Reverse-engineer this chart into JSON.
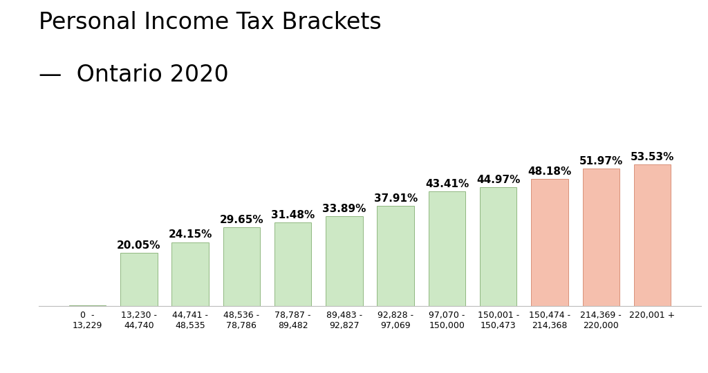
{
  "title_line1": "Personal Income Tax Brackets",
  "title_line2": "—  Ontario 2020",
  "categories": [
    "0  -\n13,229",
    "13,230 -\n44,740",
    "44,741 -\n48,535",
    "48,536 -\n78,786",
    "78,787 -\n89,482",
    "89,483 -\n92,827",
    "92,828 -\n97,069",
    "97,070 -\n150,000",
    "150,001 -\n150,473",
    "150,474 -\n214,368",
    "214,369 -\n220,000",
    "220,001 +"
  ],
  "values": [
    0.3,
    20.05,
    24.15,
    29.65,
    31.48,
    33.89,
    37.91,
    43.41,
    44.97,
    48.18,
    51.97,
    53.53
  ],
  "labels": [
    "",
    "20.05%",
    "24.15%",
    "29.65%",
    "31.48%",
    "33.89%",
    "37.91%",
    "43.41%",
    "44.97%",
    "48.18%",
    "51.97%",
    "53.53%"
  ],
  "bar_colors": [
    "#cde8c5",
    "#cde8c5",
    "#cde8c5",
    "#cde8c5",
    "#cde8c5",
    "#cde8c5",
    "#cde8c5",
    "#cde8c5",
    "#cde8c5",
    "#f5bfad",
    "#f5bfad",
    "#f5bfad"
  ],
  "bar_edge_colors": [
    "#90b880",
    "#90b880",
    "#90b880",
    "#90b880",
    "#90b880",
    "#90b880",
    "#90b880",
    "#90b880",
    "#90b880",
    "#d9917a",
    "#d9917a",
    "#d9917a"
  ],
  "ylim": [
    0,
    65
  ],
  "background_color": "#ffffff",
  "title_fontsize": 24,
  "subtitle_fontsize": 24,
  "label_fontsize": 11,
  "tick_fontsize": 9
}
